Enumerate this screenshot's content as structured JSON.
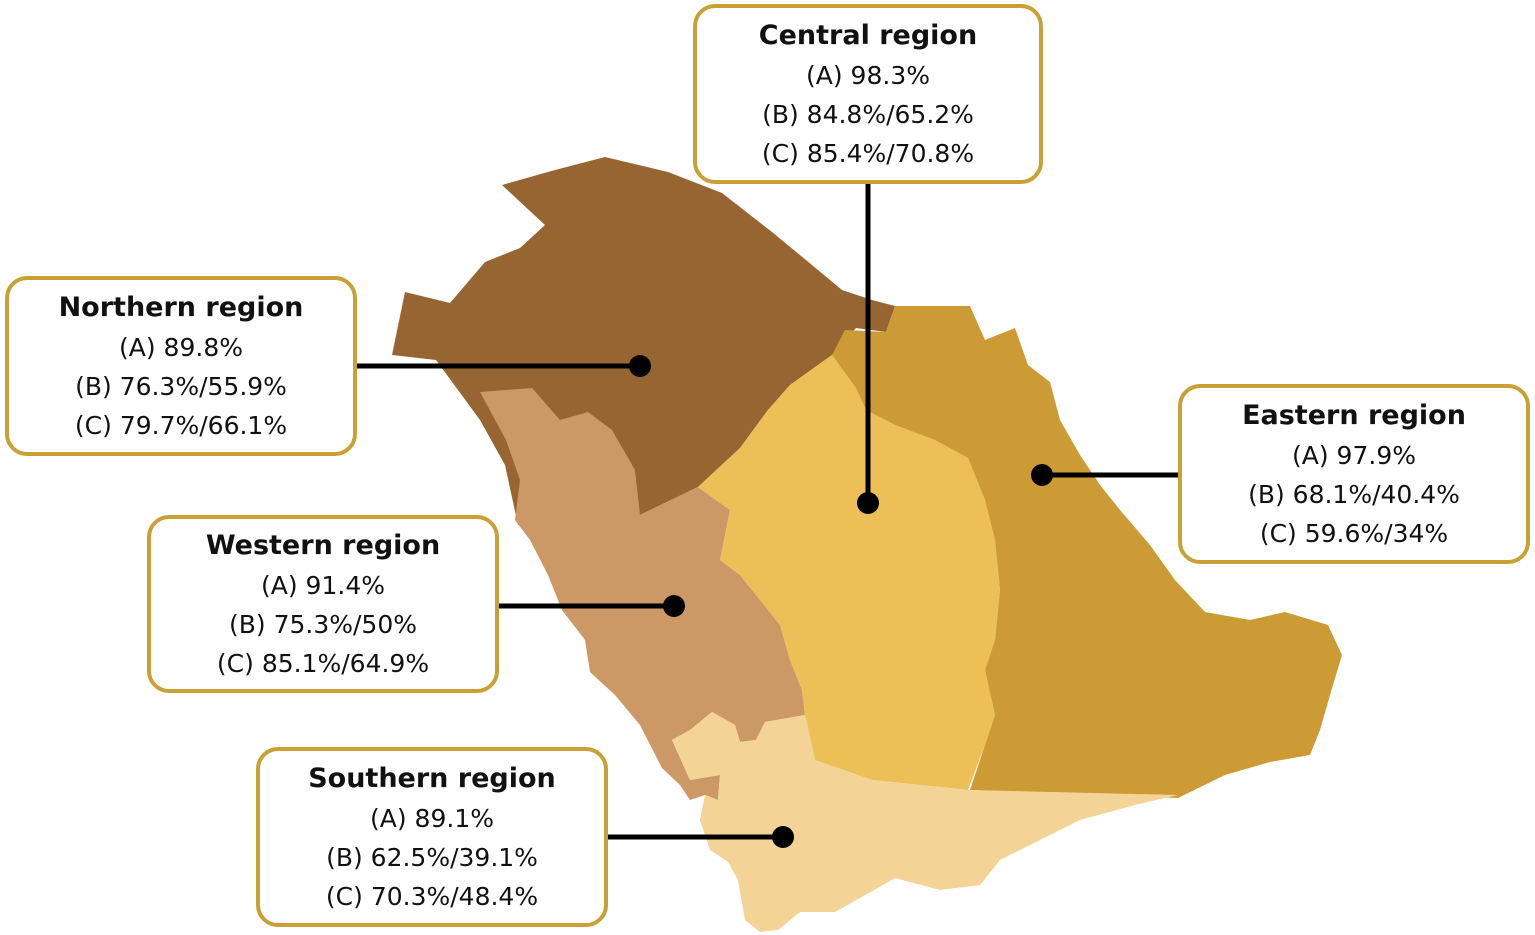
{
  "colors": {
    "northern": "#976532",
    "western": "#cc9865",
    "central": "#edbf57",
    "eastern": "#cc9b35",
    "southern": "#f3d496",
    "box_border": "#c9a034",
    "leader": "#000000"
  },
  "regions": {
    "central": {
      "title": "Central region",
      "a": "(A) 98.3%",
      "b": "(B) 84.8%/65.2%",
      "c": "(C) 85.4%/70.8%"
    },
    "northern": {
      "title": "Northern region",
      "a": "(A) 89.8%",
      "b": "(B) 76.3%/55.9%",
      "c": "(C) 79.7%/66.1%"
    },
    "eastern": {
      "title": "Eastern region",
      "a": "(A) 97.9%",
      "b": "(B) 68.1%/40.4%",
      "c": "(C) 59.6%/34%"
    },
    "western": {
      "title": "Western region",
      "a": "(A) 91.4%",
      "b": "(B) 75.3%/50%",
      "c": "(C) 85.1%/64.9%"
    },
    "southern": {
      "title": "Southern region",
      "a": "(A) 89.1%",
      "b": "(B) 62.5%/39.1%",
      "c": "(C) 70.3%/48.4%"
    }
  }
}
